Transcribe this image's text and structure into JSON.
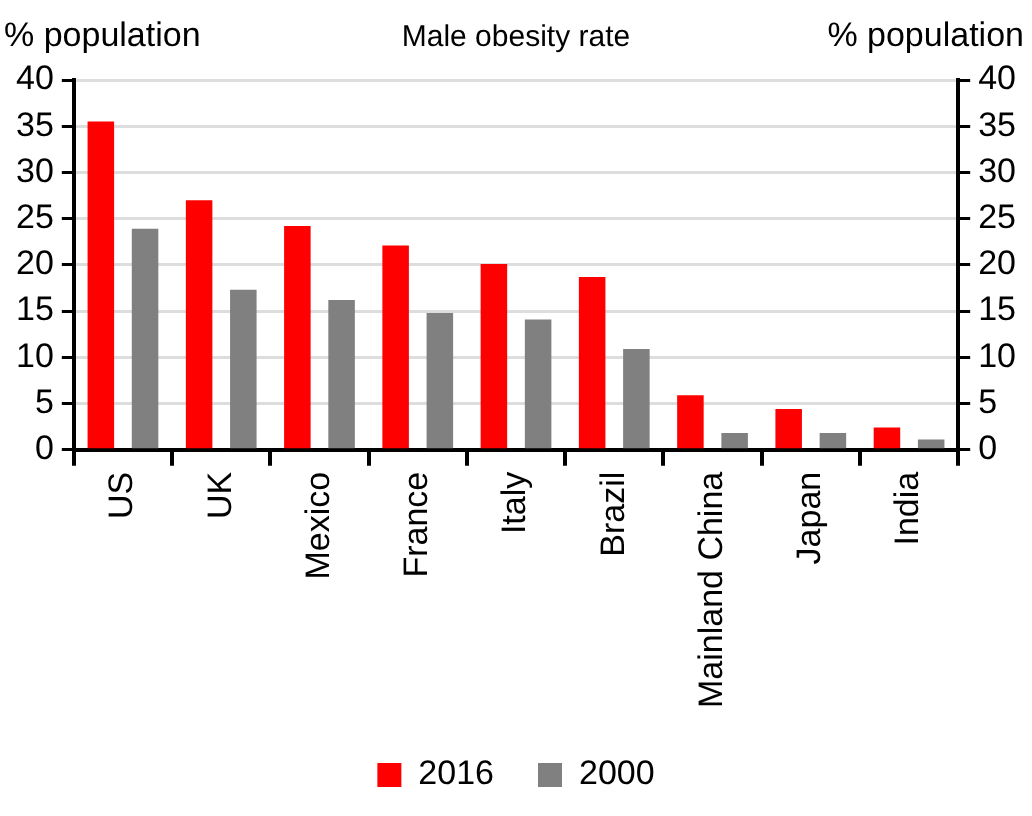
{
  "chart_data": {
    "type": "bar",
    "title": "Male obesity rate",
    "ylabel": "% population",
    "y2label": "% population",
    "categories": [
      "US",
      "UK",
      "Mexico",
      "France",
      "Italy",
      "Brazil",
      "Mainland China",
      "Japan",
      "India"
    ],
    "series": [
      {
        "name": "2016",
        "color": "#ff0000",
        "values": [
          35.5,
          27.0,
          24.2,
          22.1,
          20.1,
          18.7,
          5.9,
          4.4,
          2.4
        ]
      },
      {
        "name": "2000",
        "color": "#808080",
        "values": [
          23.9,
          17.3,
          16.2,
          14.8,
          14.1,
          10.9,
          1.8,
          1.8,
          1.1
        ]
      }
    ],
    "ylim": [
      0,
      40
    ],
    "yticks": [
      0,
      5,
      10,
      15,
      20,
      25,
      30,
      35,
      40
    ],
    "y2lim": [
      0,
      40
    ],
    "y2ticks": [
      0,
      5,
      10,
      15,
      20,
      25,
      30,
      35,
      40
    ],
    "grid": "y",
    "legend": "bottom"
  }
}
